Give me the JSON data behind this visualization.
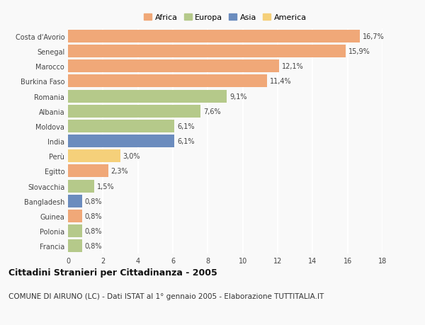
{
  "categories": [
    "Costa d'Avorio",
    "Senegal",
    "Marocco",
    "Burkina Faso",
    "Romania",
    "Albania",
    "Moldova",
    "India",
    "Perù",
    "Egitto",
    "Slovacchia",
    "Bangladesh",
    "Guinea",
    "Polonia",
    "Francia"
  ],
  "values": [
    16.7,
    15.9,
    12.1,
    11.4,
    9.1,
    7.6,
    6.1,
    6.1,
    3.0,
    2.3,
    1.5,
    0.8,
    0.8,
    0.8,
    0.8
  ],
  "labels": [
    "16,7%",
    "15,9%",
    "12,1%",
    "11,4%",
    "9,1%",
    "7,6%",
    "6,1%",
    "6,1%",
    "3,0%",
    "2,3%",
    "1,5%",
    "0,8%",
    "0,8%",
    "0,8%",
    "0,8%"
  ],
  "continents": [
    "Africa",
    "Africa",
    "Africa",
    "Africa",
    "Europa",
    "Europa",
    "Europa",
    "Asia",
    "America",
    "Africa",
    "Europa",
    "Asia",
    "Africa",
    "Europa",
    "Europa"
  ],
  "continent_colors": {
    "Africa": "#F0A878",
    "Europa": "#B5C98A",
    "Asia": "#6B8CBE",
    "America": "#F5D07A"
  },
  "legend_order": [
    "Africa",
    "Europa",
    "Asia",
    "America"
  ],
  "title": "Cittadini Stranieri per Cittadinanza - 2005",
  "subtitle": "COMUNE DI AIRUNO (LC) - Dati ISTAT al 1° gennaio 2005 - Elaborazione TUTTITALIA.IT",
  "xlim": [
    0,
    18
  ],
  "xticks": [
    0,
    2,
    4,
    6,
    8,
    10,
    12,
    14,
    16,
    18
  ],
  "background_color": "#f9f9f9",
  "grid_color": "#ffffff",
  "bar_height": 0.85,
  "title_fontsize": 9,
  "subtitle_fontsize": 7.5,
  "label_fontsize": 7,
  "tick_fontsize": 7,
  "legend_fontsize": 8,
  "ytick_fontsize": 7
}
